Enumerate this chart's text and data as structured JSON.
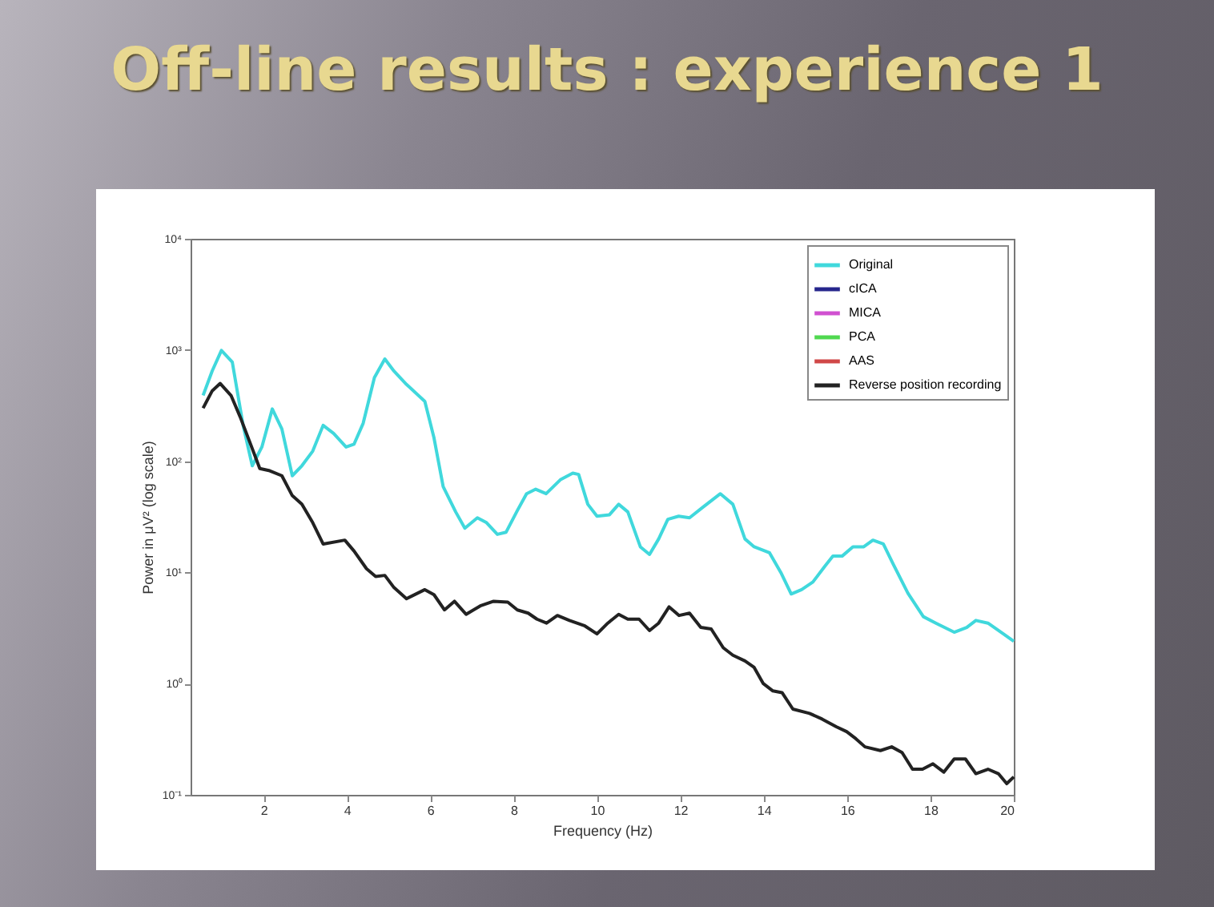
{
  "chart_data": {
    "type": "line",
    "title": "Off-line results : experience 1",
    "xlabel": "Frequency (Hz)",
    "ylabel": "Power in μV² (log scale)",
    "log": "y",
    "grid": false,
    "legend": "top right",
    "marker": "none",
    "line_style": "solid",
    "xlim": [
      0.25,
      20
    ],
    "xticks": [
      2,
      4,
      6,
      8,
      10,
      12,
      14,
      16,
      18,
      20
    ],
    "ylim": [
      0.1,
      10000
    ],
    "yticks": [
      {
        "value": 0.1,
        "label": "10⁻¹"
      },
      {
        "value": 1,
        "label": "10⁰"
      },
      {
        "value": 10,
        "label": "10¹"
      },
      {
        "value": 100,
        "label": "10²"
      },
      {
        "value": 1000,
        "label": "10³"
      },
      {
        "value": 10000,
        "label": "10⁴"
      }
    ],
    "series": [
      {
        "name": "Original",
        "color": "#40d8dc",
        "x": [
          0.55,
          0.77,
          0.99,
          1.25,
          1.51,
          1.73,
          1.96,
          2.21,
          2.44,
          2.69,
          2.92,
          3.18,
          3.43,
          3.68,
          3.98,
          4.17,
          4.39,
          4.66,
          4.91,
          5.13,
          5.43,
          5.87,
          6.09,
          6.31,
          6.61,
          6.83,
          7.13,
          7.35,
          7.61,
          7.82,
          8.09,
          8.31,
          8.53,
          8.78,
          9.12,
          9.42,
          9.56,
          9.78,
          10.0,
          10.3,
          10.52,
          10.74,
          11.04,
          11.26,
          11.48,
          11.7,
          11.96,
          12.22,
          12.52,
          12.96,
          13.26,
          13.55,
          13.77,
          14.14,
          14.41,
          14.66,
          14.91,
          15.18,
          15.47,
          15.66,
          15.88,
          16.14,
          16.4,
          16.62,
          16.87,
          17.1,
          17.46,
          17.83,
          18.13,
          18.57,
          18.87,
          19.09,
          19.38,
          19.75,
          20.0
        ],
        "values": [
          390,
          650,
          990,
          780,
          210,
          91,
          134,
          295,
          195,
          74,
          91,
          123,
          210,
          178,
          134,
          142,
          219,
          565,
          830,
          645,
          490,
          345,
          162,
          59,
          35,
          25,
          31,
          28,
          22,
          23,
          36,
          51,
          56,
          51,
          68,
          78,
          76,
          41,
          32,
          33,
          41,
          35,
          17,
          14.5,
          20,
          30,
          32,
          31,
          38,
          51,
          41,
          20,
          17,
          15,
          10,
          6.4,
          7,
          8.2,
          11.4,
          14,
          14,
          17,
          17,
          19.5,
          18,
          12,
          6.5,
          4,
          3.5,
          2.9,
          3.2,
          3.7,
          3.5,
          2.8,
          2.4
        ]
      },
      {
        "name": "cICA",
        "color": "#26268c"
      },
      {
        "name": "MICA",
        "color": "#d050d0"
      },
      {
        "name": "PCA",
        "color": "#50d850"
      },
      {
        "name": "AAS",
        "color": "#d04848"
      },
      {
        "name": "Reverse position recording",
        "color": "#222222",
        "x": [
          0.55,
          0.77,
          0.96,
          1.22,
          1.44,
          1.66,
          1.91,
          2.15,
          2.44,
          2.69,
          2.92,
          3.18,
          3.43,
          3.95,
          4.17,
          4.47,
          4.69,
          4.91,
          5.13,
          5.43,
          5.87,
          6.09,
          6.34,
          6.58,
          6.86,
          7.2,
          7.52,
          7.86,
          8.09,
          8.35,
          8.56,
          8.79,
          9.05,
          9.34,
          9.71,
          10.0,
          10.26,
          10.52,
          10.74,
          11.01,
          11.26,
          11.48,
          11.73,
          11.97,
          12.22,
          12.49,
          12.74,
          13.03,
          13.26,
          13.55,
          13.77,
          13.99,
          14.22,
          14.44,
          14.7,
          15.1,
          15.4,
          15.74,
          15.99,
          16.21,
          16.43,
          16.8,
          17.07,
          17.32,
          17.57,
          17.81,
          18.06,
          18.32,
          18.57,
          18.84,
          19.09,
          19.38,
          19.63,
          19.83,
          20.0
        ],
        "values": [
          300,
          430,
          500,
          390,
          250,
          152,
          86,
          82,
          74,
          49,
          41,
          28,
          18,
          19.5,
          15.6,
          10.8,
          9.2,
          9.4,
          7.3,
          5.8,
          7,
          6.3,
          4.6,
          5.5,
          4.2,
          5,
          5.5,
          5.4,
          4.6,
          4.3,
          3.8,
          3.5,
          4.1,
          3.7,
          3.3,
          2.8,
          3.5,
          4.2,
          3.8,
          3.8,
          3.0,
          3.5,
          4.9,
          4.1,
          4.3,
          3.2,
          3.1,
          2.1,
          1.8,
          1.6,
          1.4,
          1.0,
          0.86,
          0.83,
          0.59,
          0.54,
          0.48,
          0.41,
          0.37,
          0.32,
          0.27,
          0.25,
          0.27,
          0.24,
          0.17,
          0.17,
          0.19,
          0.16,
          0.21,
          0.21,
          0.155,
          0.17,
          0.155,
          0.126,
          0.145
        ]
      }
    ]
  }
}
